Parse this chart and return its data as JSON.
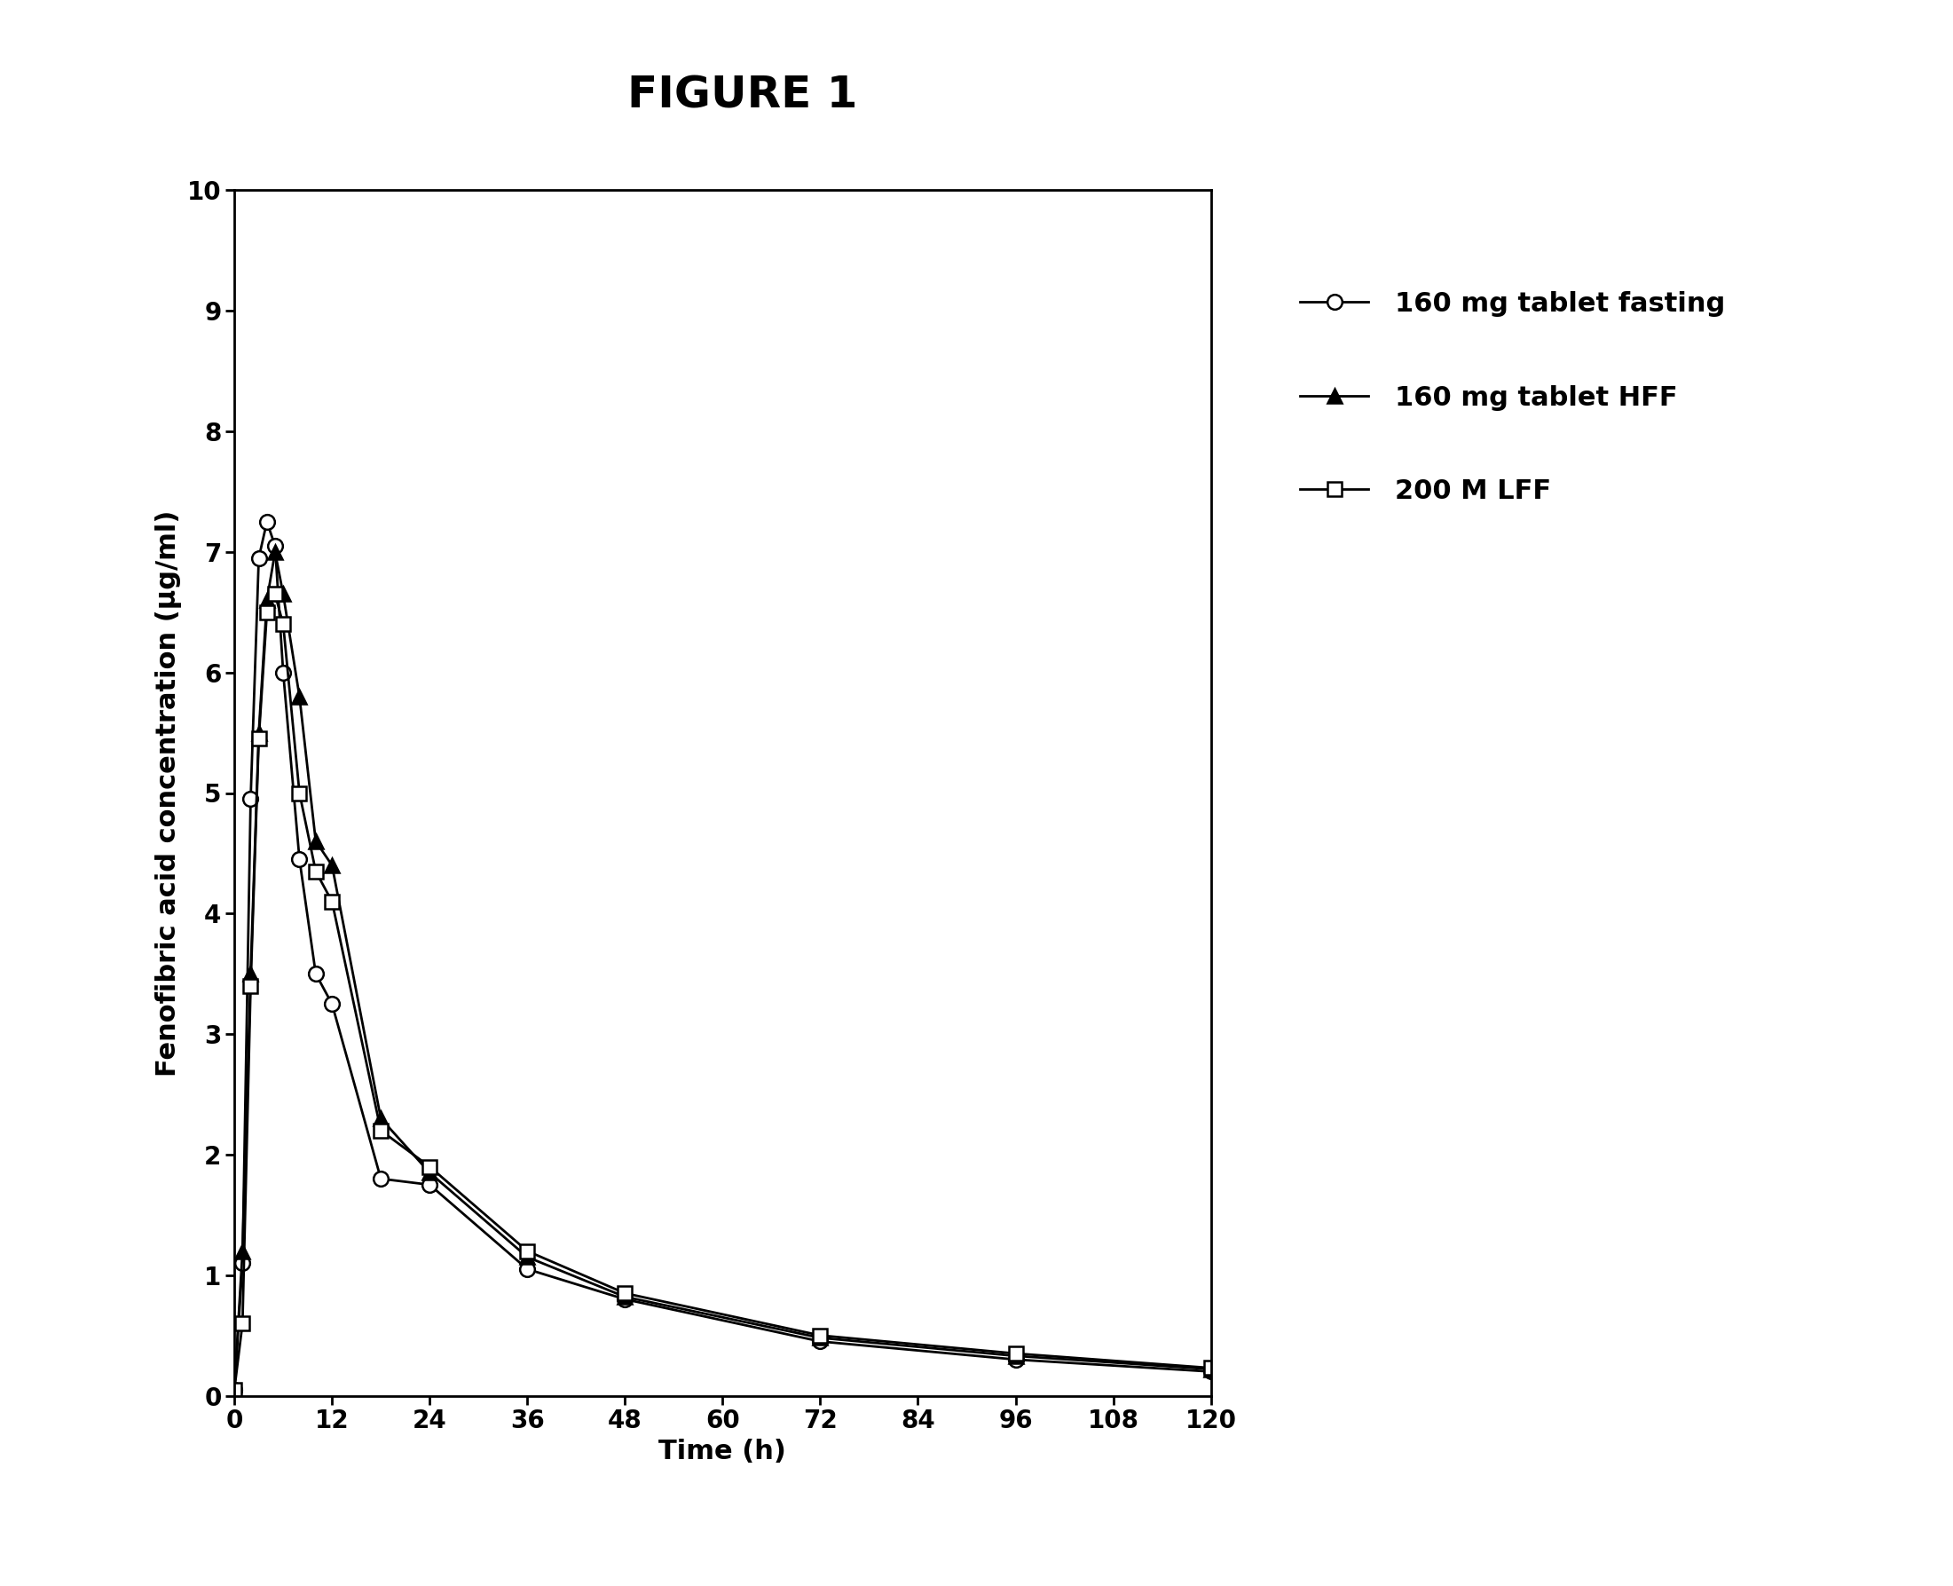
{
  "title": "FIGURE 1",
  "xlabel": "Time (h)",
  "ylabel": "Fenofibric acid concentration (μg/ml)",
  "xlim": [
    0,
    120
  ],
  "ylim": [
    0,
    10
  ],
  "xticks": [
    0,
    12,
    24,
    36,
    48,
    60,
    72,
    84,
    96,
    108,
    120
  ],
  "yticks": [
    0,
    1,
    2,
    3,
    4,
    5,
    6,
    7,
    8,
    9,
    10
  ],
  "series": [
    {
      "label": "160 mg tablet fasting",
      "marker": "o",
      "markerfacecolor": "white",
      "markeredgecolor": "black",
      "linecolor": "black",
      "x": [
        0,
        1,
        2,
        3,
        4,
        5,
        6,
        8,
        10,
        12,
        18,
        24,
        36,
        48,
        72,
        96,
        120
      ],
      "y": [
        0.05,
        1.1,
        4.95,
        6.95,
        7.25,
        7.05,
        6.0,
        4.45,
        3.5,
        3.25,
        1.8,
        1.75,
        1.05,
        0.8,
        0.45,
        0.3,
        0.2
      ]
    },
    {
      "label": "160 mg tablet HFF",
      "marker": "^",
      "markerfacecolor": "black",
      "markeredgecolor": "black",
      "linecolor": "black",
      "x": [
        0,
        1,
        2,
        3,
        4,
        5,
        6,
        8,
        10,
        12,
        18,
        24,
        36,
        48,
        72,
        96,
        120
      ],
      "y": [
        0.05,
        1.2,
        3.5,
        5.5,
        6.6,
        7.0,
        6.65,
        5.8,
        4.6,
        4.4,
        2.3,
        1.85,
        1.15,
        0.82,
        0.48,
        0.33,
        0.22
      ]
    },
    {
      "label": "200 M LFF",
      "marker": "s",
      "markerfacecolor": "white",
      "markeredgecolor": "black",
      "linecolor": "black",
      "x": [
        0,
        1,
        2,
        3,
        4,
        5,
        6,
        8,
        10,
        12,
        18,
        24,
        36,
        48,
        72,
        96,
        120
      ],
      "y": [
        0.05,
        0.6,
        3.4,
        5.45,
        6.5,
        6.65,
        6.4,
        5.0,
        4.35,
        4.1,
        2.2,
        1.9,
        1.2,
        0.85,
        0.5,
        0.35,
        0.23
      ]
    }
  ],
  "background_color": "#ffffff",
  "title_fontsize": 36,
  "label_fontsize": 22,
  "tick_fontsize": 20,
  "legend_fontsize": 22,
  "markersize": 12,
  "linewidth": 2.0
}
